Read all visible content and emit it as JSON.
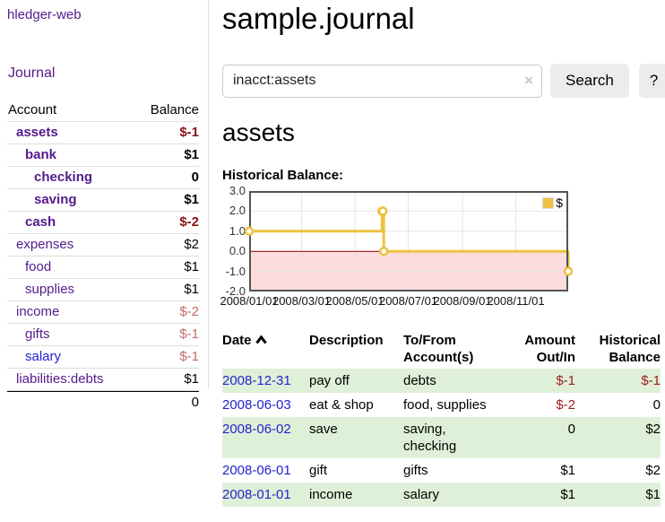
{
  "app": {
    "title": "hledger-web"
  },
  "colors": {
    "purple": "#551a8b",
    "blue": "#2323cf",
    "neg-strong": "#8b1414",
    "neg-soft": "#c46a6a",
    "neg": "#9c1b1b",
    "stripe-green": "#dff0d8",
    "row-border": "#dddddd",
    "chart-line": "#edc240",
    "chart-neg-fill": "#fcdcdc",
    "zero-line": "#8b0000",
    "grid-line": "#e6e6e6",
    "chart-border": "#545454",
    "clear-icon": "#cbbfdd",
    "button-bg": "#ececec",
    "input-border": "#c8c8c8"
  },
  "sidebar": {
    "nav_journal": "Journal",
    "table": {
      "account_header": "Account",
      "balance_header": "Balance",
      "rows": [
        {
          "account": "assets",
          "level": 1,
          "bold": true,
          "balance": "$-1",
          "neg": "neg-strong"
        },
        {
          "account": "bank",
          "level": 2,
          "bold": true,
          "balance": "$1"
        },
        {
          "account": "checking",
          "level": 3,
          "bold": true,
          "balance": "0"
        },
        {
          "account": "saving",
          "level": 3,
          "bold": true,
          "balance": "$1"
        },
        {
          "account": "cash",
          "level": 2,
          "bold": true,
          "balance": "$-2",
          "neg": "neg-strong"
        },
        {
          "account": "expenses",
          "level": 1,
          "bold": false,
          "balance": "$2"
        },
        {
          "account": "food",
          "level": 2,
          "bold": false,
          "balance": "$1"
        },
        {
          "account": "supplies",
          "level": 2,
          "bold": false,
          "balance": "$1"
        },
        {
          "account": "income",
          "level": 1,
          "bold": false,
          "balance": "$-2",
          "neg": "neg-soft"
        },
        {
          "account": "gifts",
          "level": 2,
          "bold": false,
          "balance": "$-1",
          "neg": "neg-soft"
        },
        {
          "account": "salary",
          "level": 2,
          "bold": false,
          "balance": "$-1",
          "neg": "neg-soft",
          "link": "blue"
        },
        {
          "account": "liabilities:debts",
          "level": 1,
          "bold": false,
          "balance": "$1"
        }
      ],
      "total": "0"
    }
  },
  "main": {
    "title": "sample.journal",
    "search": {
      "value": "inacct:assets",
      "clear_icon": "×",
      "button_label": "Search",
      "help_label": "?"
    },
    "account_heading": "assets",
    "chart_label": "Historical Balance:"
  },
  "chart_data": {
    "type": "line",
    "step": true,
    "title": "Historical Balance:",
    "series": [
      {
        "name": "$",
        "points": [
          [
            "2008-01-01",
            1
          ],
          [
            "2008-06-01",
            2
          ],
          [
            "2008-06-02",
            2
          ],
          [
            "2008-06-03",
            0
          ],
          [
            "2008-12-31",
            -1
          ]
        ]
      }
    ],
    "x_ticks": [
      "2008/01/01",
      "2008/03/01",
      "2008/05/01",
      "2008/07/01",
      "2008/09/01",
      "2008/11/01"
    ],
    "y_ticks": [
      "3.0",
      "2.0",
      "1.0",
      "0.0",
      "-1.0",
      "-2.0"
    ],
    "ylim": [
      -2,
      3
    ],
    "xlim": [
      "2008-01-01",
      "2008-12-31"
    ],
    "grid": true,
    "legend": {
      "label": "$",
      "position": "top-right"
    },
    "negative_region_shaded": true
  },
  "transactions": {
    "headers": [
      {
        "label": "Date",
        "sort": "asc",
        "align": "left"
      },
      {
        "label": "Description",
        "align": "left"
      },
      {
        "label": "To/From Account(s)",
        "align": "left"
      },
      {
        "label": "Amount Out/In",
        "align": "right"
      },
      {
        "label": "Historical Balance",
        "align": "right"
      }
    ],
    "rows": [
      {
        "date": "2008-12-31",
        "description": "pay off",
        "accounts": "debts",
        "amount": "$-1",
        "amount_neg": true,
        "balance": "$-1",
        "balance_neg": true
      },
      {
        "date": "2008-06-03",
        "description": "eat & shop",
        "accounts": "food, supplies",
        "amount": "$-2",
        "amount_neg": true,
        "balance": "0",
        "balance_neg": false
      },
      {
        "date": "2008-06-02",
        "description": "save",
        "accounts": "saving, checking",
        "amount": "0",
        "amount_neg": false,
        "balance": "$2",
        "balance_neg": false
      },
      {
        "date": "2008-06-01",
        "description": "gift",
        "accounts": "gifts",
        "amount": "$1",
        "amount_neg": false,
        "balance": "$2",
        "balance_neg": false
      },
      {
        "date": "2008-01-01",
        "description": "income",
        "accounts": "salary",
        "amount": "$1",
        "amount_neg": false,
        "balance": "$1",
        "balance_neg": false
      }
    ]
  }
}
